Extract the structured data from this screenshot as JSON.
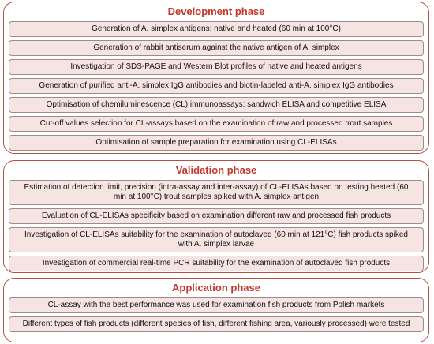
{
  "phases": [
    {
      "title": "Development phase",
      "steps": [
        "Generation of A. simplex antigens: native and heated (60 min at 100°C)",
        "Generation of rabbit antiserum against the native antigen of A. simplex",
        "Investigation of SDS-PAGE and Western Blot profiles of native and heated antigens",
        "Generation of purified anti-A. simplex IgG antibodies and biotin-labeled anti-A. simplex IgG antibodies",
        "Optimisation of chemiluminescence (CL) immunoassays: sandwich ELISA and competitive ELISA",
        "Cut-off values selection for CL-assays based on the examination of raw and processed trout samples",
        "Optimisation of sample preparation for examination using CL-ELISAs"
      ]
    },
    {
      "title": "Validation phase",
      "steps": [
        "Estimation of detection limit, precision (intra-assay and inter-assay) of CL-ELISAs based on testing heated (60 min at 100°C) trout samples spiked with A. simplex antigen",
        "Evaluation of CL-ELISAs specificity based on examination different raw and processed fish products",
        "Investigation of CL-ELISAs suitability for the examination of autoclaved (60 min at 121°C) fish products spiked with A. simplex larvae",
        "Investigation of commercial real-time PCR suitability for the examination of autoclaved fish products"
      ]
    },
    {
      "title": "Application phase",
      "steps": [
        "CL-assay with the best performance was used for examination fish products from Polish markets",
        "Different types of fish products (different species of fish, different fishing area, variously processed) were tested"
      ]
    }
  ]
}
